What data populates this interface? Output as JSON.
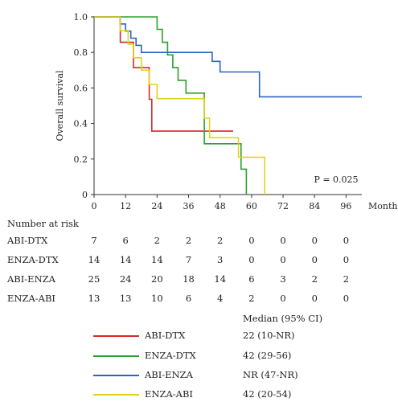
{
  "chart_data": {
    "type": "line",
    "title": "",
    "xlabel": "Months",
    "ylabel": "Overall survival",
    "xlim": [
      0,
      102
    ],
    "ylim": [
      0,
      1.0
    ],
    "xticks": [
      "0",
      "12",
      "24",
      "36",
      "48",
      "60",
      "72",
      "84",
      "96"
    ],
    "xtick_values": [
      0,
      12,
      24,
      36,
      48,
      60,
      72,
      84,
      96
    ],
    "yticks": [
      "0",
      "0.2",
      "0.4",
      "0.6",
      "0.8",
      "1.0"
    ],
    "ytick_values": [
      0,
      0.2,
      0.4,
      0.6,
      0.8,
      1.0
    ],
    "annotation": "P = 0.025",
    "grid": false,
    "series": [
      {
        "name": "ABI-DTX",
        "color": "#d62728",
        "x": [
          0,
          10,
          13,
          15,
          20,
          21,
          22,
          53
        ],
        "y": [
          1.0,
          0.857,
          0.857,
          0.714,
          0.714,
          0.536,
          0.357,
          0.357
        ]
      },
      {
        "name": "ENZA-DTX",
        "color": "#2ca02c",
        "x": [
          0,
          12,
          24,
          26,
          28,
          30,
          32,
          35,
          42,
          52,
          56,
          58
        ],
        "y": [
          1.0,
          1.0,
          0.93,
          0.857,
          0.786,
          0.714,
          0.643,
          0.571,
          0.286,
          0.286,
          0.143,
          0.0
        ]
      },
      {
        "name": "ABI-ENZA",
        "color": "#2e63c6",
        "x": [
          0,
          10,
          12,
          14,
          16,
          18,
          45,
          48,
          63,
          102
        ],
        "y": [
          1.0,
          0.96,
          0.92,
          0.88,
          0.84,
          0.8,
          0.75,
          0.69,
          0.55,
          0.55
        ]
      },
      {
        "name": "ENZA-ABI",
        "color": "#e2d21f",
        "x": [
          0,
          10,
          13,
          15,
          18,
          21,
          24,
          30,
          42,
          44,
          55,
          60,
          65
        ],
        "y": [
          1.0,
          0.923,
          0.846,
          0.77,
          0.7,
          0.62,
          0.54,
          0.54,
          0.43,
          0.32,
          0.21,
          0.21,
          0.0
        ]
      }
    ]
  },
  "risk_table": {
    "header": "Number at risk",
    "rows": [
      {
        "label": "ABI-DTX",
        "values": [
          "7",
          "6",
          "2",
          "2",
          "2",
          "0",
          "0",
          "0",
          "0"
        ]
      },
      {
        "label": "ENZA-DTX",
        "values": [
          "14",
          "14",
          "14",
          "7",
          "3",
          "0",
          "0",
          "0",
          "0"
        ]
      },
      {
        "label": "ABI-ENZA",
        "values": [
          "25",
          "24",
          "20",
          "18",
          "14",
          "6",
          "3",
          "2",
          "2"
        ]
      },
      {
        "label": "ENZA-ABI",
        "values": [
          "13",
          "13",
          "10",
          "6",
          "4",
          "2",
          "0",
          "0",
          "0"
        ]
      }
    ]
  },
  "legend": {
    "title": "Median (95% CI)",
    "items": [
      {
        "name": "ABI-DTX",
        "median": "22 (10-NR)",
        "color": "#d62728"
      },
      {
        "name": "ENZA-DTX",
        "median": "42 (29-56)",
        "color": "#2ca02c"
      },
      {
        "name": "ABI-ENZA",
        "median": "NR (47-NR)",
        "color": "#2e63c6"
      },
      {
        "name": "ENZA-ABI",
        "median": "42 (20-54)",
        "color": "#e2d21f"
      }
    ]
  }
}
